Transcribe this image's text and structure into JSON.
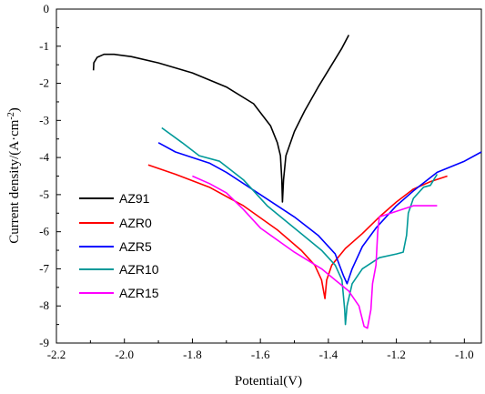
{
  "chart_data": {
    "type": "line",
    "title": "",
    "xlabel": "Potential(V)",
    "ylabel_main": "Current density/(A·cm",
    "ylabel_sup": "-2",
    "ylabel_tail": ")",
    "xlim": [
      -2.2,
      -0.95
    ],
    "ylim": [
      -9,
      0
    ],
    "xticks": [
      -2.2,
      -2.0,
      -1.8,
      -1.6,
      -1.4,
      -1.2,
      -1.0
    ],
    "xtick_labels": [
      "-2.2",
      "-2.0",
      "-1.8",
      "-1.6",
      "-1.4",
      "-1.2",
      "-1.0"
    ],
    "yticks": [
      0,
      -1,
      -2,
      -3,
      -4,
      -5,
      -6,
      -7,
      -8,
      -9
    ],
    "ytick_labels": [
      "0",
      "-1",
      "-2",
      "-3",
      "-4",
      "-5",
      "-6",
      "-7",
      "-8",
      "-9"
    ],
    "grid": false,
    "legend_position": "bottom-left",
    "series": [
      {
        "name": "AZ91",
        "color": "#000000",
        "points": [
          [
            -2.091,
            -1.65
          ],
          [
            -2.09,
            -1.45
          ],
          [
            -2.08,
            -1.3
          ],
          [
            -2.06,
            -1.22
          ],
          [
            -2.03,
            -1.22
          ],
          [
            -1.98,
            -1.28
          ],
          [
            -1.9,
            -1.45
          ],
          [
            -1.8,
            -1.72
          ],
          [
            -1.7,
            -2.1
          ],
          [
            -1.62,
            -2.55
          ],
          [
            -1.57,
            -3.15
          ],
          [
            -1.55,
            -3.6
          ],
          [
            -1.541,
            -3.95
          ],
          [
            -1.537,
            -4.6
          ],
          [
            -1.535,
            -5.2
          ],
          [
            -1.532,
            -4.6
          ],
          [
            -1.525,
            -3.95
          ],
          [
            -1.5,
            -3.3
          ],
          [
            -1.47,
            -2.75
          ],
          [
            -1.43,
            -2.1
          ],
          [
            -1.39,
            -1.5
          ],
          [
            -1.36,
            -1.05
          ],
          [
            -1.34,
            -0.7
          ]
        ]
      },
      {
        "name": "AZR0",
        "color": "#ff0000",
        "points": [
          [
            -1.93,
            -4.2
          ],
          [
            -1.85,
            -4.45
          ],
          [
            -1.75,
            -4.8
          ],
          [
            -1.65,
            -5.3
          ],
          [
            -1.55,
            -5.95
          ],
          [
            -1.48,
            -6.5
          ],
          [
            -1.44,
            -6.9
          ],
          [
            -1.42,
            -7.3
          ],
          [
            -1.41,
            -7.8
          ],
          [
            -1.405,
            -7.3
          ],
          [
            -1.39,
            -6.9
          ],
          [
            -1.35,
            -6.45
          ],
          [
            -1.3,
            -6.05
          ],
          [
            -1.25,
            -5.6
          ],
          [
            -1.2,
            -5.2
          ],
          [
            -1.15,
            -4.85
          ],
          [
            -1.1,
            -4.65
          ],
          [
            -1.05,
            -4.5
          ]
        ]
      },
      {
        "name": "AZR5",
        "color": "#0000ff",
        "points": [
          [
            -1.9,
            -3.6
          ],
          [
            -1.85,
            -3.85
          ],
          [
            -1.8,
            -4.0
          ],
          [
            -1.75,
            -4.15
          ],
          [
            -1.7,
            -4.4
          ],
          [
            -1.6,
            -5.0
          ],
          [
            -1.5,
            -5.6
          ],
          [
            -1.43,
            -6.1
          ],
          [
            -1.38,
            -6.6
          ],
          [
            -1.355,
            -7.2
          ],
          [
            -1.345,
            -7.4
          ],
          [
            -1.33,
            -7.0
          ],
          [
            -1.3,
            -6.4
          ],
          [
            -1.26,
            -5.9
          ],
          [
            -1.2,
            -5.3
          ],
          [
            -1.15,
            -4.9
          ],
          [
            -1.08,
            -4.4
          ],
          [
            -1.0,
            -4.1
          ],
          [
            -0.95,
            -3.85
          ]
        ]
      },
      {
        "name": "AZR10",
        "color": "#009999",
        "points": [
          [
            -1.89,
            -3.2
          ],
          [
            -1.83,
            -3.6
          ],
          [
            -1.78,
            -3.95
          ],
          [
            -1.72,
            -4.1
          ],
          [
            -1.65,
            -4.6
          ],
          [
            -1.58,
            -5.3
          ],
          [
            -1.5,
            -5.9
          ],
          [
            -1.42,
            -6.5
          ],
          [
            -1.38,
            -6.9
          ],
          [
            -1.36,
            -7.3
          ],
          [
            -1.352,
            -8.1
          ],
          [
            -1.35,
            -8.5
          ],
          [
            -1.345,
            -8.0
          ],
          [
            -1.33,
            -7.4
          ],
          [
            -1.3,
            -7.0
          ],
          [
            -1.25,
            -6.7
          ],
          [
            -1.2,
            -6.6
          ],
          [
            -1.18,
            -6.55
          ],
          [
            -1.17,
            -6.1
          ],
          [
            -1.165,
            -5.5
          ],
          [
            -1.15,
            -5.1
          ],
          [
            -1.12,
            -4.8
          ],
          [
            -1.1,
            -4.75
          ],
          [
            -1.09,
            -4.6
          ],
          [
            -1.08,
            -4.45
          ]
        ]
      },
      {
        "name": "AZR15",
        "color": "#ff00ff",
        "points": [
          [
            -1.8,
            -4.5
          ],
          [
            -1.75,
            -4.7
          ],
          [
            -1.7,
            -4.95
          ],
          [
            -1.65,
            -5.4
          ],
          [
            -1.6,
            -5.9
          ],
          [
            -1.5,
            -6.55
          ],
          [
            -1.42,
            -7.0
          ],
          [
            -1.38,
            -7.3
          ],
          [
            -1.34,
            -7.6
          ],
          [
            -1.31,
            -8.0
          ],
          [
            -1.295,
            -8.55
          ],
          [
            -1.285,
            -8.6
          ],
          [
            -1.275,
            -8.1
          ],
          [
            -1.27,
            -7.4
          ],
          [
            -1.26,
            -6.9
          ],
          [
            -1.255,
            -6.0
          ],
          [
            -1.25,
            -5.6
          ],
          [
            -1.2,
            -5.45
          ],
          [
            -1.15,
            -5.3
          ],
          [
            -1.1,
            -5.3
          ],
          [
            -1.08,
            -5.3
          ]
        ]
      }
    ]
  }
}
